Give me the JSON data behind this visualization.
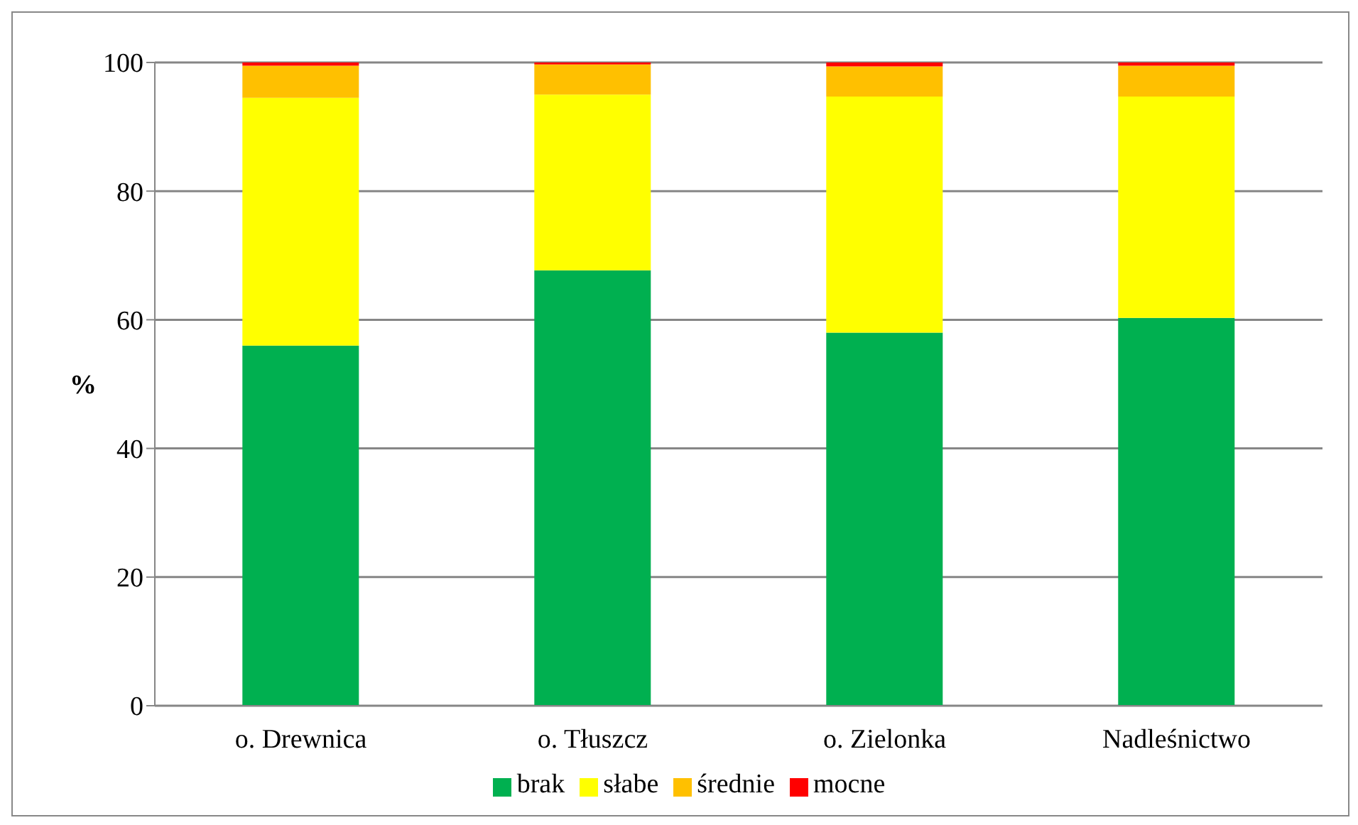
{
  "chart_data": {
    "type": "bar",
    "stacked": true,
    "ylabel": "%",
    "categories": [
      "o. Drewnica",
      "o. Tłuszcz",
      "o. Zielonka",
      "Nadleśnictwo"
    ],
    "series": [
      {
        "name": "brak",
        "color": "#00b050",
        "values": [
          56,
          67.7,
          58,
          60.3
        ]
      },
      {
        "name": "słabe",
        "color": "#ffff00",
        "values": [
          38.5,
          27.3,
          36.7,
          34.4
        ]
      },
      {
        "name": "średnie",
        "color": "#ffc000",
        "values": [
          5,
          4.7,
          4.7,
          4.8
        ]
      },
      {
        "name": "mocne",
        "color": "#ff0000",
        "values": [
          0.5,
          0.3,
          0.6,
          0.5
        ]
      }
    ],
    "ylim": [
      0,
      100
    ],
    "yticks": [
      0,
      20,
      40,
      60,
      80,
      100
    ],
    "grid": "y",
    "legend": "bottom"
  }
}
